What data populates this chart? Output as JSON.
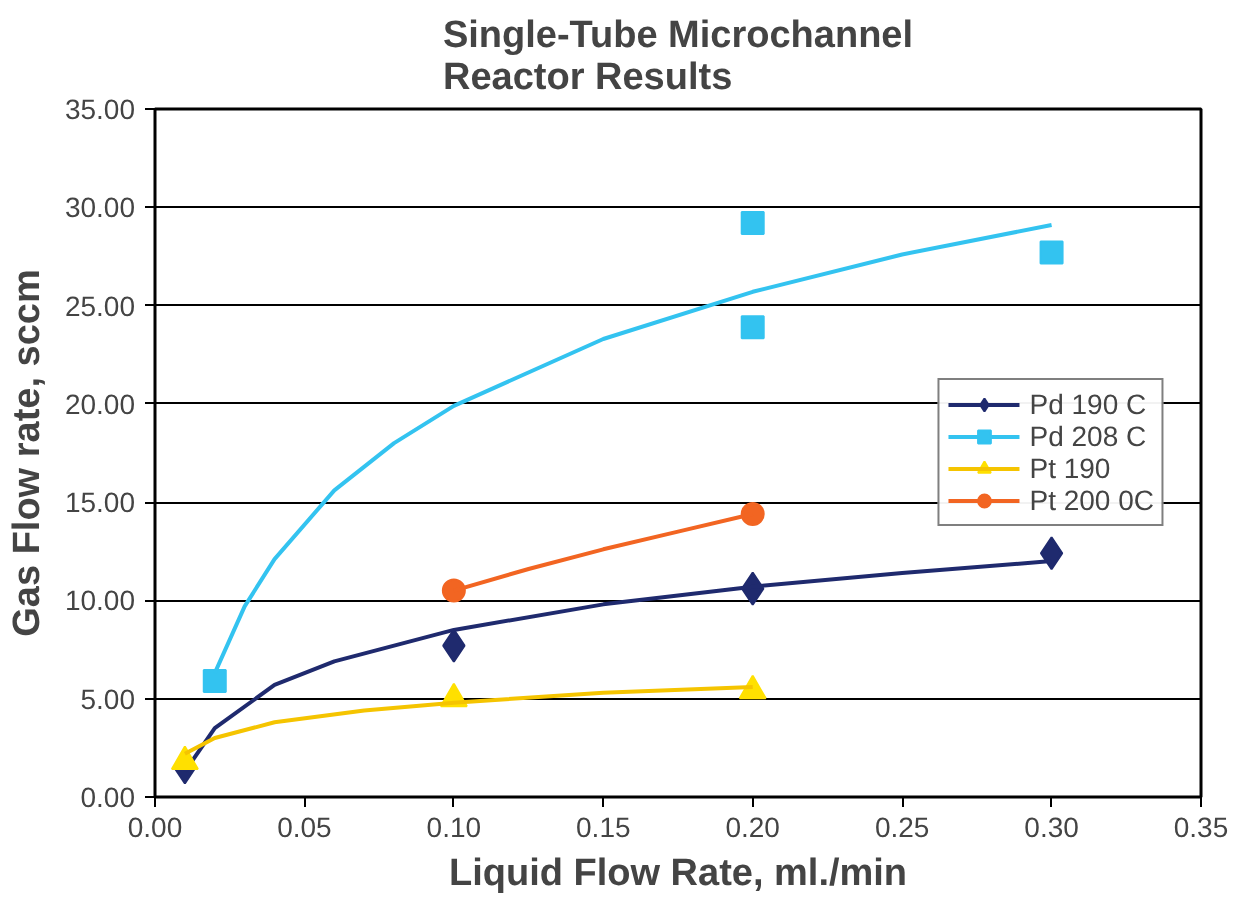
{
  "chart_data": {
    "type": "scatter",
    "title": "Single-Tube Microchannel\nReactor Results",
    "xlabel": "Liquid Flow Rate, ml./min",
    "ylabel": "Gas Flow rate, sccm",
    "xlim": [
      0,
      0.35
    ],
    "ylim": [
      0,
      35
    ],
    "xticks": [
      {
        "value": 0,
        "label": "0.00"
      },
      {
        "value": 0.05,
        "label": "0.05"
      },
      {
        "value": 0.1,
        "label": "0.10"
      },
      {
        "value": 0.15,
        "label": "0.15"
      },
      {
        "value": 0.2,
        "label": "0.20"
      },
      {
        "value": 0.25,
        "label": "0.25"
      },
      {
        "value": 0.3,
        "label": "0.30"
      },
      {
        "value": 0.35,
        "label": "0.35"
      }
    ],
    "yticks": [
      {
        "value": 0,
        "label": "0.00"
      },
      {
        "value": 5,
        "label": "5.00"
      },
      {
        "value": 10,
        "label": "10.00"
      },
      {
        "value": 15,
        "label": "15.00"
      },
      {
        "value": 20,
        "label": "20.00"
      },
      {
        "value": 25,
        "label": "25.00"
      },
      {
        "value": 30,
        "label": "30.00"
      },
      {
        "value": 35,
        "label": "35.00"
      }
    ],
    "grid": "y",
    "legend": "right",
    "series": [
      {
        "name": "Pd 190 C",
        "marker": "diamond",
        "color": "#1f2a6e",
        "x": [
          0.01,
          0.1,
          0.2,
          0.3
        ],
        "values": [
          1.5,
          7.7,
          10.6,
          12.4
        ]
      },
      {
        "type": "line",
        "marker": "none",
        "color": "#1f2a6e",
        "x": [
          0.01,
          0.02,
          0.04,
          0.06,
          0.1,
          0.15,
          0.2,
          0.25,
          0.3
        ],
        "values": [
          1.3,
          3.5,
          5.7,
          6.9,
          8.5,
          9.8,
          10.7,
          11.4,
          12.0
        ]
      },
      {
        "name": "Pd 208 C",
        "marker": "square",
        "color": "#33c3f0",
        "x": [
          0.02,
          0.2,
          0.2,
          0.3
        ],
        "values": [
          5.9,
          29.2,
          23.9,
          27.7
        ]
      },
      {
        "type": "line",
        "marker": "none",
        "color": "#33c3f0",
        "x": [
          0.02,
          0.03,
          0.04,
          0.06,
          0.08,
          0.1,
          0.15,
          0.2,
          0.25,
          0.3
        ],
        "values": [
          6.3,
          9.7,
          12.1,
          15.6,
          18.0,
          19.9,
          23.3,
          25.7,
          27.6,
          29.1
        ]
      },
      {
        "name": "Pt 190",
        "marker": "triangle",
        "color": "#ffe000",
        "x": [
          0.01,
          0.1,
          0.2
        ],
        "values": [
          1.8,
          5.0,
          5.4
        ]
      },
      {
        "type": "line",
        "marker": "none",
        "color": "#f5c400",
        "x": [
          0.01,
          0.02,
          0.04,
          0.07,
          0.1,
          0.15,
          0.2
        ],
        "values": [
          2.2,
          3.0,
          3.8,
          4.4,
          4.8,
          5.3,
          5.6
        ]
      },
      {
        "name": "Pt 200 0C",
        "marker": "circle",
        "color": "#f26522",
        "x": [
          0.1,
          0.2
        ],
        "values": [
          10.5,
          14.4
        ]
      },
      {
        "type": "line",
        "marker": "none",
        "color": "#f26522",
        "x": [
          0.1,
          0.125,
          0.15,
          0.175,
          0.2
        ],
        "values": [
          10.5,
          11.6,
          12.6,
          13.5,
          14.4
        ]
      }
    ]
  }
}
